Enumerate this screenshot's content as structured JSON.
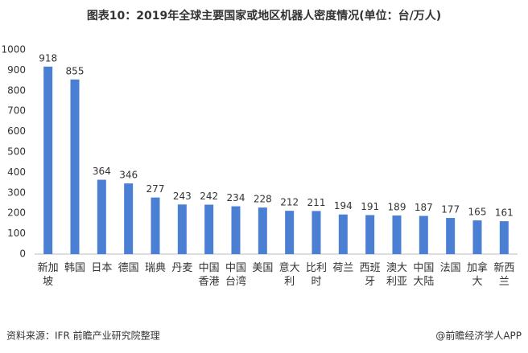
{
  "chart_data": {
    "type": "bar",
    "title": "图表10：2019年全球主要国家或地区机器人密度情况(单位：台/万人)",
    "categories": [
      "新加坡",
      "韩国",
      "日本",
      "德国",
      "瑞典",
      "丹麦",
      "中国香港",
      "中国台湾",
      "美国",
      "意大利",
      "比利时",
      "荷兰",
      "西班牙",
      "澳大利亚",
      "中国大陆",
      "法国",
      "加拿大",
      "新西兰"
    ],
    "values": [
      918,
      855,
      364,
      346,
      277,
      243,
      242,
      234,
      228,
      212,
      211,
      194,
      191,
      189,
      187,
      177,
      165,
      161
    ],
    "color": "#4a7fd4",
    "ylim": [
      0,
      1000
    ],
    "yticks": [
      0,
      100,
      200,
      300,
      400,
      500,
      600,
      700,
      800,
      900,
      1000
    ],
    "grid": false,
    "source": "资料来源：IFR 前瞻产业研究院整理",
    "credit": "@前瞻经济学人APP"
  }
}
